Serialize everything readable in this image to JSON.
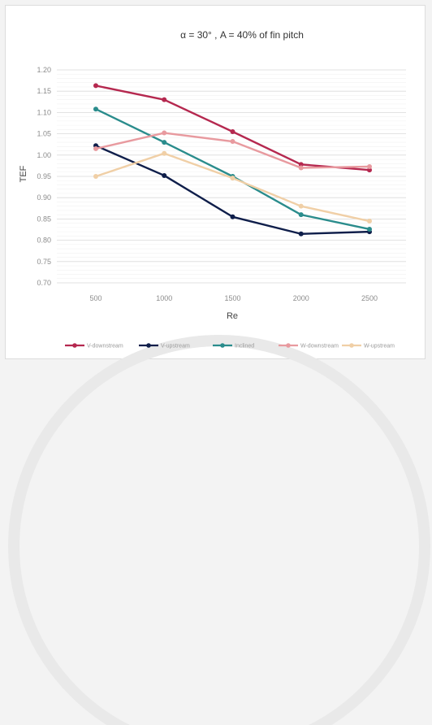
{
  "chart_data": {
    "type": "line",
    "title": "α = 30° , A = 40% of fin pitch",
    "xlabel": "Re",
    "ylabel": "TEF",
    "categories": [
      "500",
      "1000",
      "1500",
      "2000",
      "2500"
    ],
    "ylim": [
      0.7,
      1.2
    ],
    "yticks": [
      "0.70",
      "0.75",
      "0.80",
      "0.85",
      "0.90",
      "0.95",
      "1.00",
      "1.05",
      "1.10",
      "1.15",
      "1.20"
    ],
    "grid": true,
    "legend_position": "bottom",
    "series": [
      {
        "name": "V-downstream",
        "color": "#b5284f",
        "values": [
          1.163,
          1.13,
          1.055,
          0.978,
          0.965
        ]
      },
      {
        "name": "V-upstream",
        "color": "#0f1e4a",
        "values": [
          1.022,
          0.952,
          0.855,
          0.815,
          0.82
        ]
      },
      {
        "name": "Inclined",
        "color": "#2a8c8c",
        "values": [
          1.108,
          1.03,
          0.95,
          0.86,
          0.826
        ]
      },
      {
        "name": "W-downstream",
        "color": "#e89a9f",
        "values": [
          1.015,
          1.052,
          1.032,
          0.97,
          0.973
        ]
      },
      {
        "name": "W-upstream",
        "color": "#f0cfa6",
        "values": [
          0.95,
          1.004,
          0.946,
          0.88,
          0.845
        ]
      }
    ]
  }
}
